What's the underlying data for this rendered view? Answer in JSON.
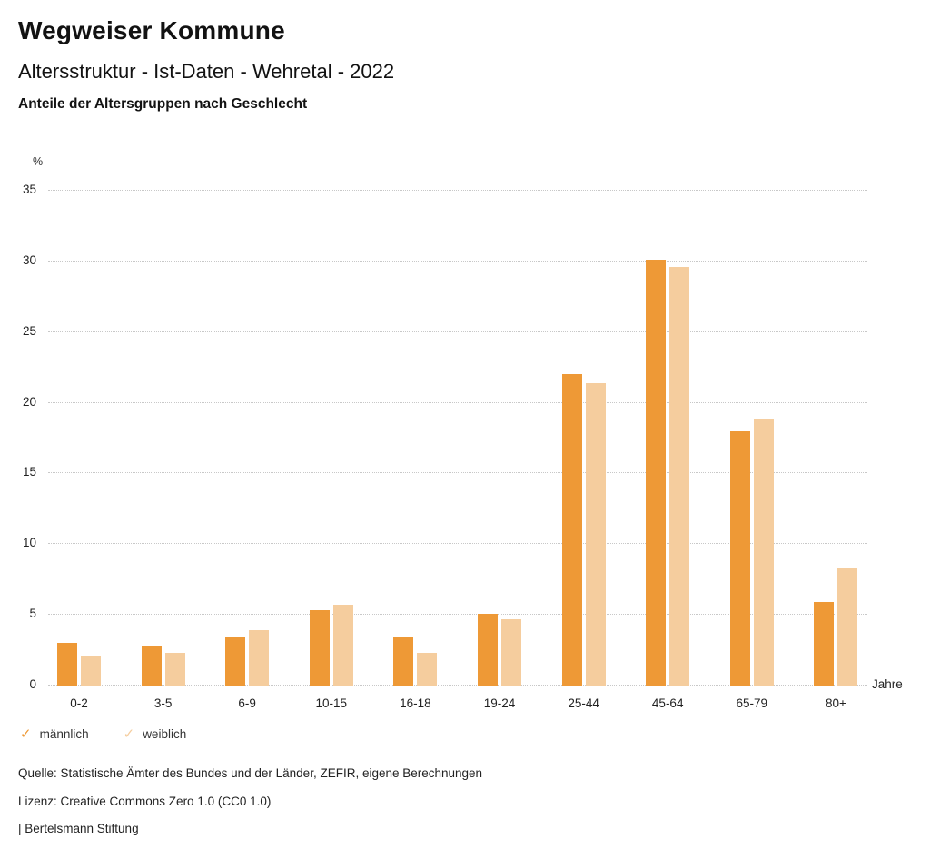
{
  "header": {
    "title": "Wegweiser Kommune",
    "subtitle": "Altersstruktur - Ist-Daten - Wehretal - 2022",
    "description": "Anteile der Altersgruppen nach Geschlecht"
  },
  "chart_data": {
    "type": "bar",
    "title": "Anteile der Altersgruppen nach Geschlecht",
    "categories": [
      "0-2",
      "3-5",
      "6-9",
      "10-15",
      "16-18",
      "19-24",
      "25-44",
      "45-64",
      "65-79",
      "80+"
    ],
    "series": [
      {
        "name": "männlich",
        "color": "#EE9936",
        "values": [
          3.0,
          2.8,
          3.4,
          5.3,
          3.4,
          5.1,
          22.0,
          30.1,
          18.0,
          5.9
        ]
      },
      {
        "name": "weiblich",
        "color": "#F5CD9E",
        "values": [
          2.1,
          2.3,
          3.9,
          5.7,
          2.3,
          4.7,
          21.4,
          29.6,
          18.9,
          8.3
        ]
      }
    ],
    "ylabel": "%",
    "xlabel": "Jahre",
    "ylim": [
      0,
      35
    ],
    "ytick_step": 5,
    "grid": "horizontal-dotted",
    "legend_position": "bottom-left"
  },
  "legend": {
    "marker_glyph": "✓",
    "items": [
      {
        "label": "männlich",
        "color": "#EE9936"
      },
      {
        "label": "weiblich",
        "color": "#F5CD9E"
      }
    ]
  },
  "footer": {
    "source": "Quelle: Statistische Ämter des Bundes und der Länder, ZEFIR, eigene Berechnungen",
    "license": "Lizenz: Creative Commons Zero 1.0 (CC0 1.0)",
    "attribution": "| Bertelsmann Stiftung"
  }
}
